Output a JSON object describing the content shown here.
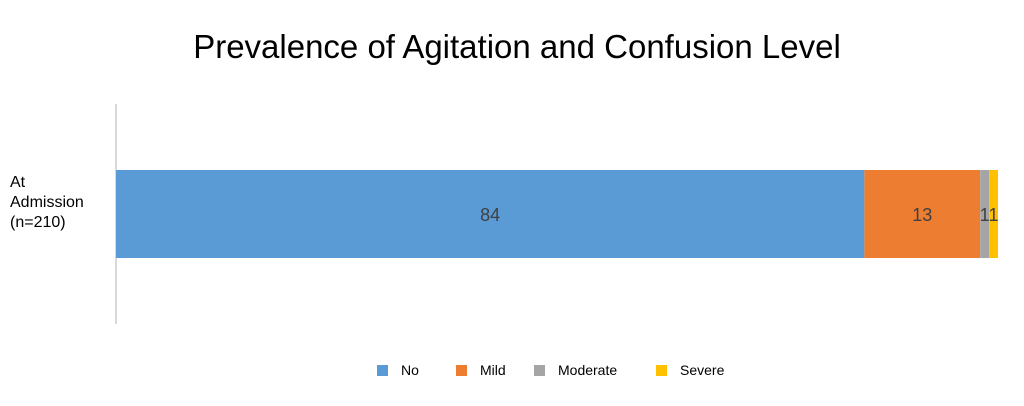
{
  "chart_data": {
    "type": "bar",
    "orientation": "horizontal",
    "stacked": true,
    "title": "Prevalence of Agitation and Confusion Level",
    "categories": [
      "At Admission (n=210)"
    ],
    "category_label_lines": [
      "At",
      "Admission",
      "(n=210)"
    ],
    "series": [
      {
        "name": "No",
        "values": [
          84
        ],
        "color": "#5b9bd5"
      },
      {
        "name": "Mild",
        "values": [
          13
        ],
        "color": "#ed7d31"
      },
      {
        "name": "Moderate",
        "values": [
          1
        ],
        "color": "#a5a5a5"
      },
      {
        "name": "Severe",
        "values": [
          1
        ],
        "color": "#ffc000"
      }
    ],
    "xlim": [
      0,
      99
    ],
    "grid": false,
    "legend_position": "bottom"
  }
}
